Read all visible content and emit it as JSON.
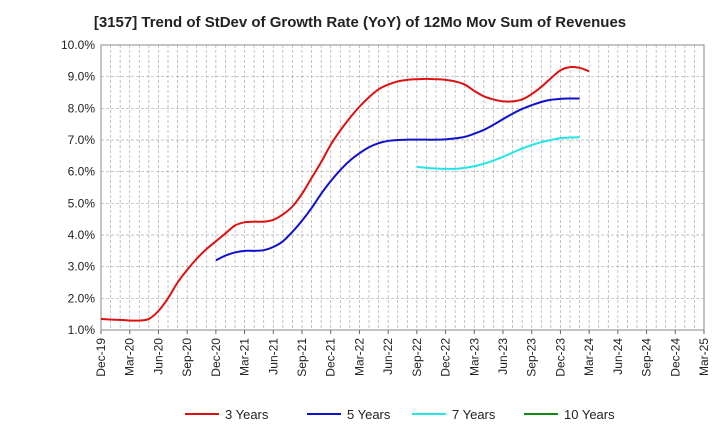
{
  "chart_data": {
    "type": "line",
    "title": "[3157]  Trend of StDev of Growth Rate (YoY) of 12Mo Mov Sum of Revenues",
    "xlabel": "",
    "ylabel": "",
    "ylim": [
      1.0,
      10.0
    ],
    "y_ticks": [
      "1.0%",
      "2.0%",
      "3.0%",
      "4.0%",
      "5.0%",
      "6.0%",
      "7.0%",
      "8.0%",
      "9.0%",
      "10.0%"
    ],
    "x_ticks": [
      "Dec-19",
      "Mar-20",
      "Jun-20",
      "Sep-20",
      "Dec-20",
      "Mar-21",
      "Jun-21",
      "Sep-21",
      "Dec-21",
      "Mar-22",
      "Jun-22",
      "Sep-22",
      "Dec-22",
      "Mar-23",
      "Jun-23",
      "Sep-23",
      "Dec-23",
      "Mar-24",
      "Jun-24",
      "Sep-24",
      "Dec-24",
      "Mar-25"
    ],
    "grid": true,
    "legend_position": "bottom",
    "series": [
      {
        "name": "3 Years",
        "color": "#dd1111",
        "start_index": 0,
        "values": [
          1.35,
          1.33,
          1.32,
          1.3,
          1.3,
          1.35,
          1.6,
          2.0,
          2.5,
          2.9,
          3.25,
          3.55,
          3.8,
          4.05,
          4.3,
          4.4,
          4.42,
          4.42,
          4.48,
          4.65,
          4.9,
          5.3,
          5.8,
          6.3,
          6.85,
          7.3,
          7.7,
          8.05,
          8.35,
          8.6,
          8.75,
          8.85,
          8.9,
          8.92,
          8.93,
          8.92,
          8.9,
          8.85,
          8.75,
          8.55,
          8.38,
          8.28,
          8.22,
          8.22,
          8.28,
          8.45,
          8.68,
          8.95,
          9.2,
          9.3,
          9.28,
          9.17
        ]
      },
      {
        "name": "5 Years",
        "color": "#1111cc",
        "start_index": 12,
        "values": [
          3.2,
          3.35,
          3.45,
          3.5,
          3.5,
          3.52,
          3.62,
          3.8,
          4.1,
          4.45,
          4.85,
          5.3,
          5.7,
          6.05,
          6.35,
          6.58,
          6.77,
          6.9,
          6.97,
          7.0,
          7.01,
          7.01,
          7.01,
          7.01,
          7.02,
          7.05,
          7.1,
          7.2,
          7.32,
          7.48,
          7.66,
          7.83,
          7.98,
          8.1,
          8.2,
          8.27,
          8.3,
          8.31,
          8.31
        ]
      },
      {
        "name": "7 Years",
        "color": "#22e6e6",
        "start_index": 33,
        "values": [
          6.15,
          6.12,
          6.1,
          6.09,
          6.09,
          6.12,
          6.17,
          6.25,
          6.35,
          6.47,
          6.6,
          6.73,
          6.84,
          6.93,
          7.0,
          7.06,
          7.08,
          7.09
        ]
      },
      {
        "name": "10 Years",
        "color": "#118811",
        "start_index": 0,
        "values": []
      }
    ]
  }
}
